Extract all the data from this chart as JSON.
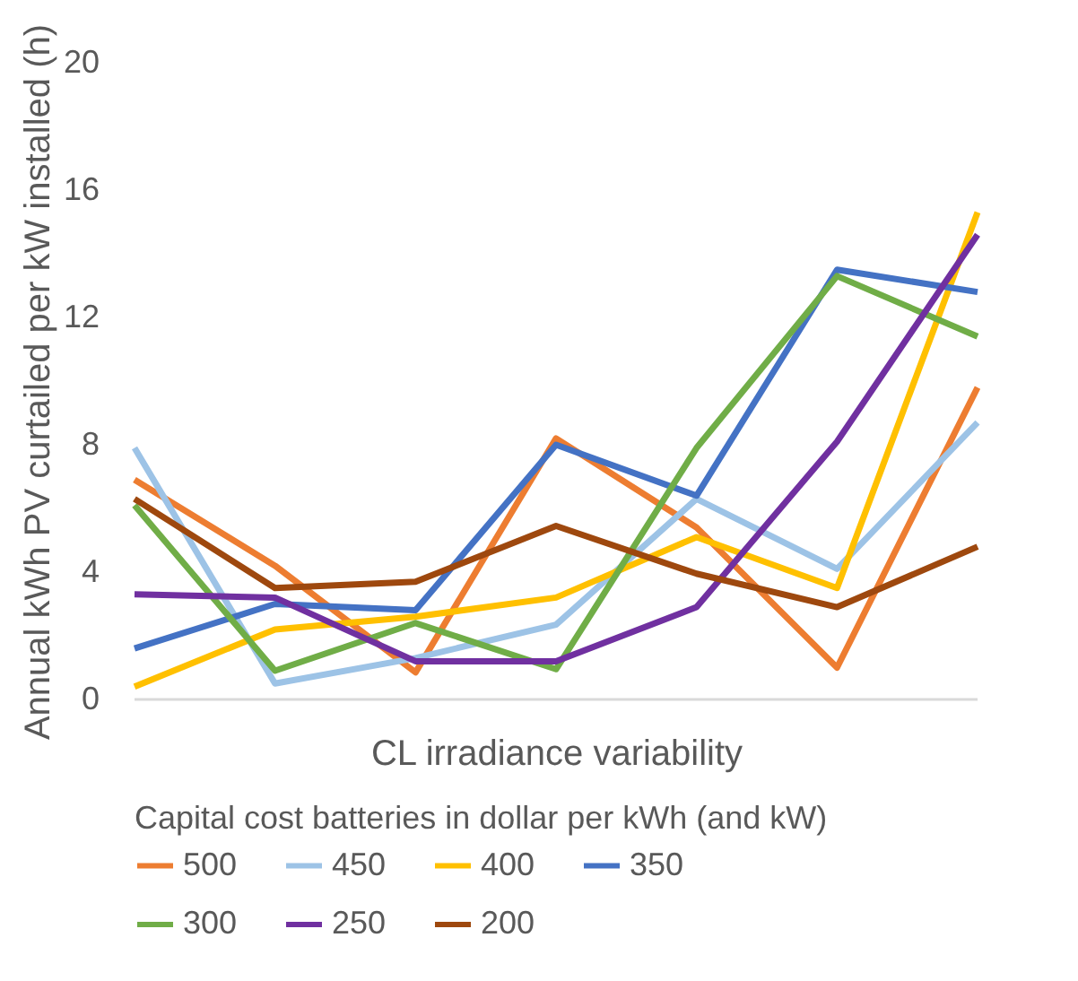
{
  "chart_data": {
    "type": "line",
    "xlabel": "CL irradiance variability",
    "ylabel": "Annual kWh PV curtailed per kW installed (h)",
    "legend_title": "Capital cost batteries in dollar per kWh (and kW)",
    "categories": [
      null,
      null,
      null,
      null,
      null,
      null,
      null
    ],
    "series": [
      {
        "name": "500",
        "color": "#ed7d31",
        "values": [
          6.9,
          4.2,
          0.85,
          8.2,
          5.4,
          1.0,
          9.8
        ]
      },
      {
        "name": "450",
        "color": "#9dc3e6",
        "values": [
          7.9,
          0.5,
          1.3,
          2.35,
          6.3,
          4.1,
          8.7
        ]
      },
      {
        "name": "400",
        "color": "#ffc000",
        "values": [
          0.4,
          2.2,
          2.6,
          3.2,
          5.1,
          3.5,
          15.3
        ]
      },
      {
        "name": "350",
        "color": "#4472c4",
        "values": [
          1.6,
          3.0,
          2.8,
          8.0,
          6.4,
          13.5,
          12.8
        ]
      },
      {
        "name": "300",
        "color": "#70ad47",
        "values": [
          6.1,
          0.9,
          2.4,
          0.95,
          7.9,
          13.3,
          11.4
        ]
      },
      {
        "name": "250",
        "color": "#7030a0",
        "values": [
          3.3,
          3.2,
          1.2,
          1.2,
          2.9,
          8.1,
          14.6
        ]
      },
      {
        "name": "200",
        "color": "#9e480e",
        "values": [
          6.3,
          3.5,
          3.7,
          5.45,
          3.95,
          2.9,
          4.8
        ]
      }
    ],
    "ylim": [
      0,
      20
    ],
    "yticks": [
      0,
      4,
      8,
      12,
      16,
      20
    ],
    "grid": false,
    "legend": "bottom",
    "tick_labels": "y",
    "line_style": "solid",
    "marker": "none"
  }
}
